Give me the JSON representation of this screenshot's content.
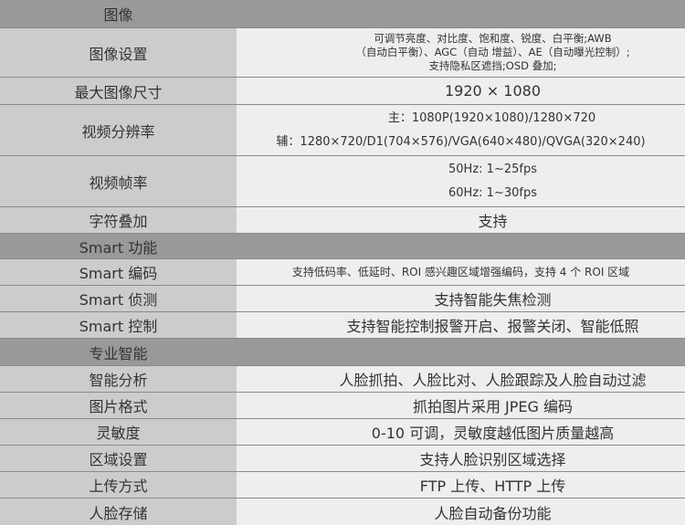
{
  "sections": [
    {
      "title": "图像",
      "rows": [
        {
          "label": "图像设置",
          "lines": [
            "可调节亮度、对比度、饱和度、锐度、白平衡;AWB",
            "（自动白平衡）、AGC（自动 增益）、AE（自动曝光控制）;",
            "支持隐私区遮挡;OSD 叠加;"
          ]
        },
        {
          "label": "最大图像尺寸",
          "lines": [
            "1920 × 1080"
          ]
        },
        {
          "label": "视频分辨率",
          "lines": [
            "主：1080P(1920×1080)/1280×720",
            "辅：1280×720/D1(704×576)/VGA(640×480)/QVGA(320×240)"
          ]
        },
        {
          "label": "视频帧率",
          "lines": [
            "50Hz: 1~25fps",
            "60Hz: 1~30fps"
          ]
        },
        {
          "label": "字符叠加",
          "lines": [
            "支持"
          ]
        }
      ]
    },
    {
      "title": "Smart 功能",
      "rows": [
        {
          "label": "Smart 编码",
          "lines": [
            "支持低码率、低延时、ROI 感兴趣区域增强编码，支持 4 个 ROI 区域"
          ]
        },
        {
          "label": "Smart 侦测",
          "lines": [
            "支持智能失焦检测"
          ]
        },
        {
          "label": "Smart 控制",
          "lines": [
            "支持智能控制报警开启、报警关闭、智能低照"
          ]
        }
      ]
    },
    {
      "title": "专业智能",
      "rows": [
        {
          "label": "智能分析",
          "lines": [
            "人脸抓拍、人脸比对、人脸跟踪及人脸自动过滤"
          ]
        },
        {
          "label": "图片格式",
          "lines": [
            "抓拍图片采用 JPEG 编码"
          ]
        },
        {
          "label": "灵敏度",
          "lines": [
            "0-10 可调，灵敏度越低图片质量越高"
          ]
        },
        {
          "label": "区域设置",
          "lines": [
            "支持人脸识别区域选择"
          ]
        },
        {
          "label": "上传方式",
          "lines": [
            "FTP 上传、HTTP 上传"
          ]
        },
        {
          "label": "人脸存储",
          "lines": [
            "人脸自动备份功能"
          ]
        }
      ]
    }
  ]
}
